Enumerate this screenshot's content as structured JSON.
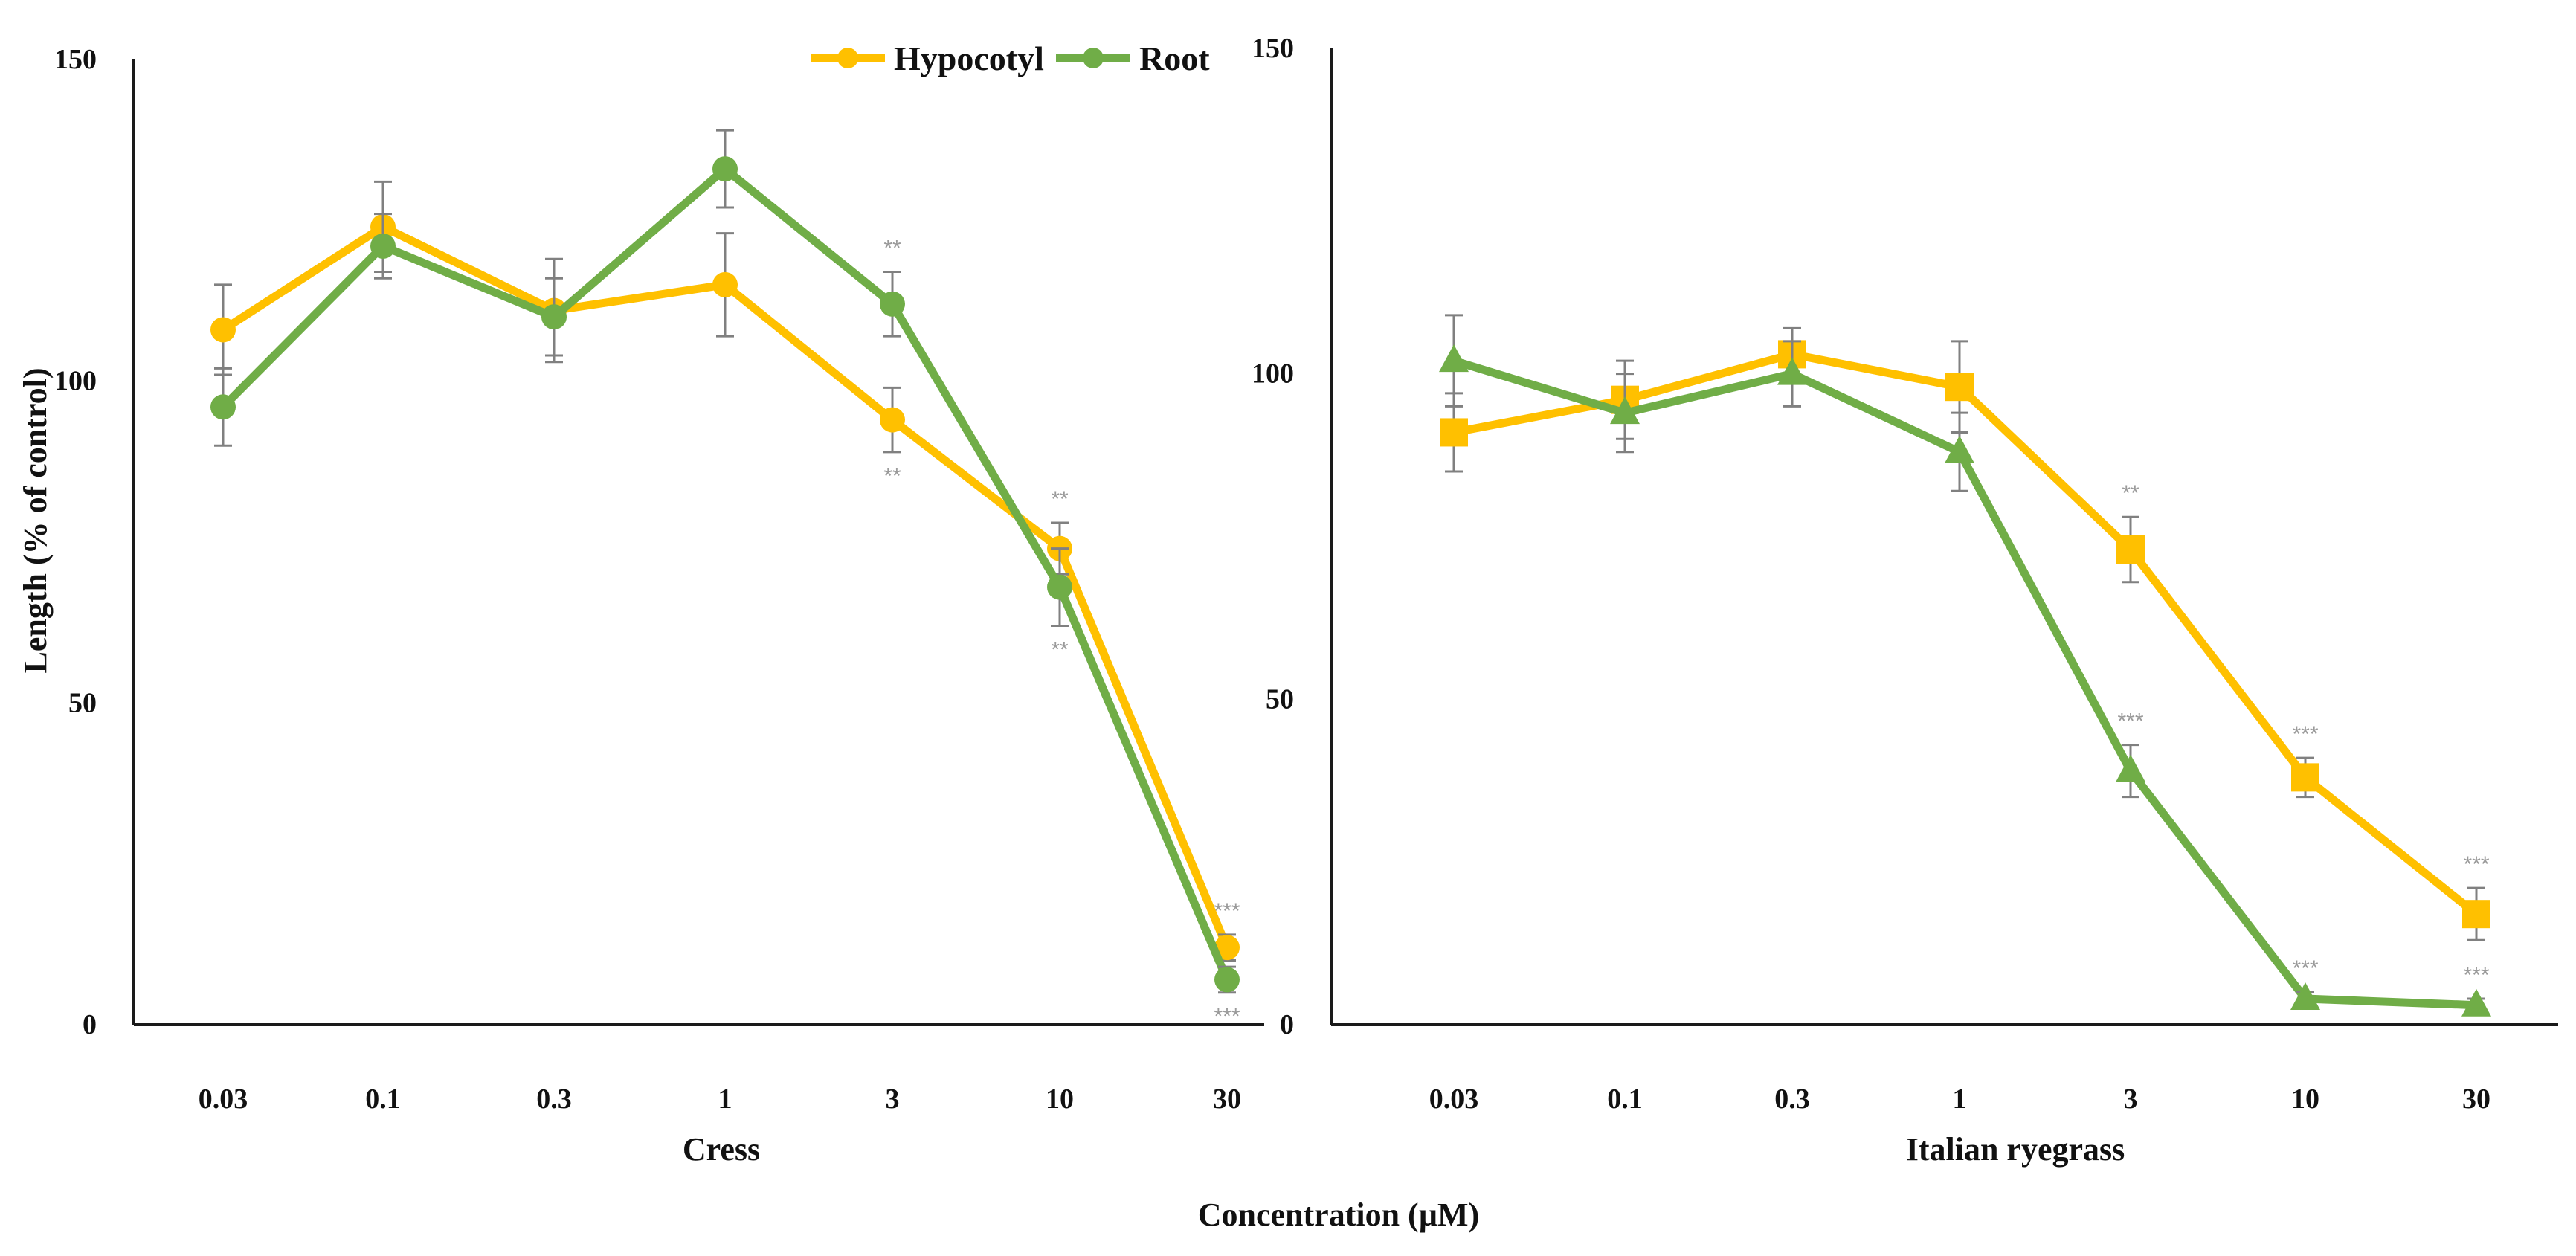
{
  "colors": {
    "hypocotyl": "#FFC000",
    "root": "#70AD47",
    "axis": "#1a1a1a",
    "error": "#808080",
    "star": "#9a9a9a"
  },
  "legend": [
    {
      "name": "Hypocotyl",
      "color": "#FFC000"
    },
    {
      "name": "Root",
      "color": "#70AD47"
    }
  ],
  "shared_xlabel": "Concentration (µM)",
  "chart_data": [
    {
      "type": "line",
      "id": "cress",
      "xlabel": "Cress",
      "ylabel": "Length (% of control)",
      "ylim": [
        0,
        150
      ],
      "yticks": [
        0,
        50,
        100,
        150
      ],
      "categories": [
        "0.03",
        "0.1",
        "0.3",
        "1",
        "3",
        "10",
        "30"
      ],
      "series": [
        {
          "name": "Hypocotyl",
          "marker": "circle",
          "color": "#FFC000",
          "values": [
            108,
            124,
            111,
            115,
            94,
            74,
            12
          ],
          "errors": [
            7,
            7,
            8,
            8,
            5,
            4,
            2
          ],
          "stars": [
            "",
            "",
            "",
            "",
            "**",
            "**",
            "***"
          ],
          "star_pos": [
            "",
            "",
            "",
            "",
            "below",
            "above",
            "above"
          ]
        },
        {
          "name": "Root",
          "marker": "circle",
          "color": "#70AD47",
          "values": [
            96,
            121,
            110,
            133,
            112,
            68,
            7
          ],
          "errors": [
            6,
            5,
            6,
            6,
            5,
            6,
            2
          ],
          "stars": [
            "",
            "",
            "",
            "",
            "**",
            "**",
            "***"
          ],
          "star_pos": [
            "",
            "",
            "",
            "",
            "above",
            "below",
            "below"
          ]
        }
      ]
    },
    {
      "type": "line",
      "id": "ryegrass",
      "xlabel": "Italian ryegrass",
      "ylabel": "",
      "ylim": [
        0,
        150
      ],
      "yticks": [
        0,
        50,
        100,
        150
      ],
      "categories": [
        "0.03",
        "0.1",
        "0.3",
        "1",
        "3",
        "10",
        "30"
      ],
      "series": [
        {
          "name": "Hypocotyl",
          "marker": "square",
          "color": "#FFC000",
          "values": [
            91,
            96,
            103,
            98,
            73,
            38,
            17
          ],
          "errors": [
            6,
            6,
            4,
            7,
            5,
            3,
            4
          ],
          "stars": [
            "",
            "",
            "",
            "",
            "**",
            "***",
            "***"
          ],
          "star_pos": [
            "",
            "",
            "",
            "",
            "above",
            "above",
            "above"
          ]
        },
        {
          "name": "Root",
          "marker": "triangle",
          "color": "#70AD47",
          "values": [
            102,
            94,
            100,
            88,
            39,
            4,
            3
          ],
          "errors": [
            7,
            6,
            5,
            6,
            4,
            1,
            1
          ],
          "stars": [
            "",
            "",
            "",
            "",
            "***",
            "***",
            "***"
          ],
          "star_pos": [
            "",
            "",
            "",
            "",
            "above",
            "above",
            "above"
          ]
        }
      ]
    }
  ]
}
